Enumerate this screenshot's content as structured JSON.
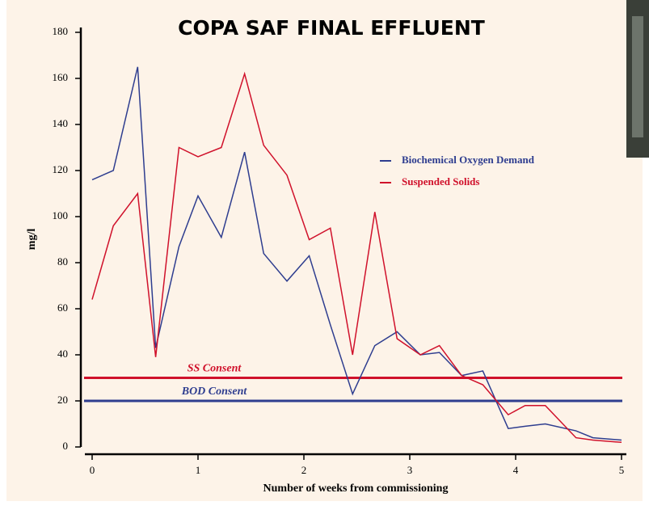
{
  "chart_data": {
    "type": "line",
    "title": "COPA SAF FINAL EFFLUENT",
    "x_label": "Number of weeks from commissioning",
    "y_label": "mg/l",
    "x": [
      0,
      0.2,
      0.43,
      0.6,
      0.82,
      1.0,
      1.22,
      1.44,
      1.62,
      1.84,
      2.05,
      2.25,
      2.46,
      2.67,
      2.88,
      3.1,
      3.28,
      3.49,
      3.69,
      3.93,
      4.09,
      4.28,
      4.57,
      4.73,
      5.0
    ],
    "series": [
      {
        "name": "Biochemical Oxygen Demand",
        "color": "#2e3d8f",
        "values": [
          116,
          120,
          165,
          43,
          87,
          109,
          91,
          128,
          84,
          72,
          83,
          53,
          23,
          44,
          50,
          40,
          41,
          31,
          33,
          8,
          9,
          10,
          7,
          4,
          3
        ]
      },
      {
        "name": "Suspended Solids",
        "color": "#d0112b",
        "values": [
          64,
          96,
          110,
          39,
          130,
          126,
          130,
          162,
          131,
          118,
          90,
          95,
          40,
          102,
          47,
          40,
          44,
          31,
          27,
          14,
          18,
          18,
          4,
          3,
          2
        ]
      }
    ],
    "reference_lines": [
      {
        "label": "SS Consent",
        "value": 30,
        "color": "#d0112b"
      },
      {
        "label": "BOD Consent",
        "value": 20,
        "color": "#2e3d8f"
      }
    ],
    "xlim": [
      -0.05,
      5.05
    ],
    "ylim": [
      0,
      180
    ],
    "xticks": [
      0,
      1,
      2,
      3,
      4,
      5
    ],
    "yticks": [
      0,
      20,
      40,
      60,
      80,
      100,
      120,
      140,
      160,
      180
    ]
  }
}
